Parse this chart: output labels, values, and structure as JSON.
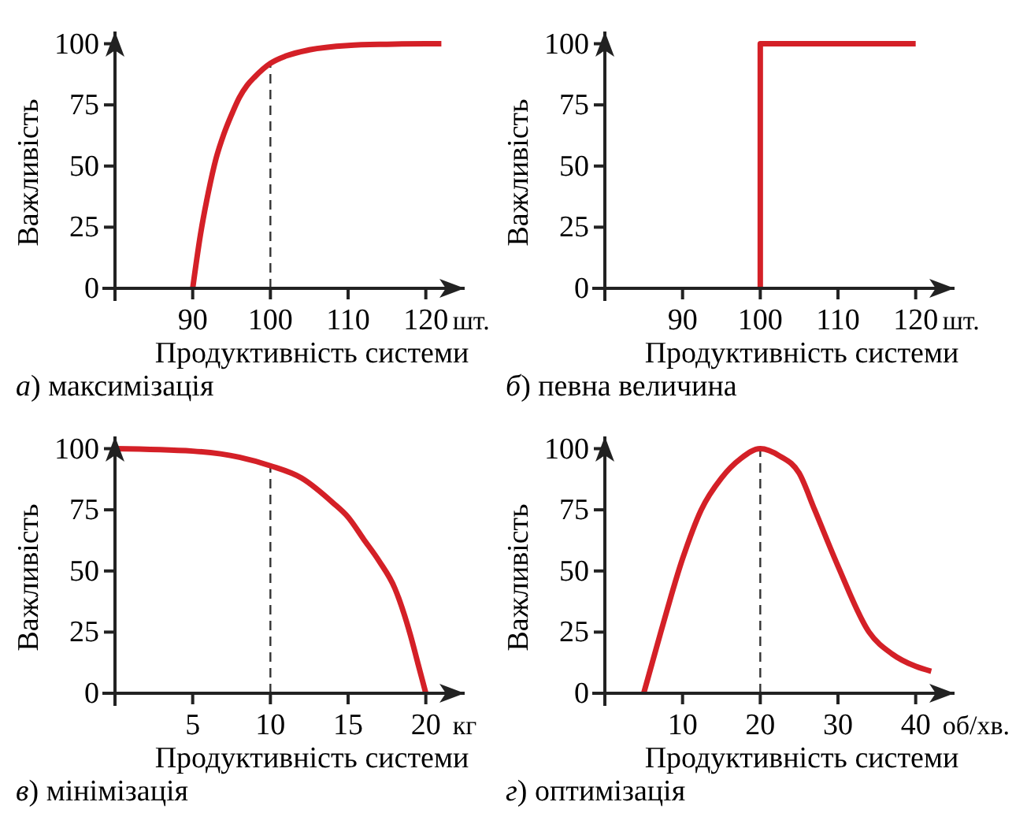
{
  "chart_data": [
    {
      "type": "line",
      "title": "а) максимізація",
      "xlabel": "Продуктивність системи",
      "ylabel": "Важливість",
      "annotations": [
        "шт."
      ],
      "xlim": [
        80,
        125
      ],
      "ylim": [
        0,
        105
      ],
      "xticks": [
        90,
        100,
        110,
        120
      ],
      "yticks": [
        0,
        25,
        50,
        75,
        100
      ],
      "grid": false,
      "marker": "none",
      "line_style": "solid",
      "ref_lines": [
        {
          "axis": "x",
          "value": 100,
          "line_style": "dashed",
          "color": "#333333"
        }
      ],
      "series": [
        {
          "color": "#d42027",
          "x": [
            90,
            91,
            92,
            93,
            94,
            95,
            96,
            97,
            98,
            100,
            102,
            105,
            110,
            115,
            120,
            122
          ],
          "values": [
            0,
            22,
            39,
            53,
            63,
            71,
            78,
            83,
            86.5,
            92,
            95,
            97.5,
            99.3,
            99.8,
            100,
            100
          ]
        }
      ]
    },
    {
      "type": "line",
      "title": "б) певна величина",
      "xlabel": "Продуктивність системи",
      "ylabel": "Важливість",
      "annotations": [
        "шт."
      ],
      "xlim": [
        80,
        125
      ],
      "ylim": [
        0,
        105
      ],
      "xticks": [
        90,
        100,
        110,
        120
      ],
      "yticks": [
        0,
        25,
        50,
        75,
        100
      ],
      "grid": false,
      "marker": "none",
      "line_style": "solid",
      "series": [
        {
          "color": "#d42027",
          "x": [
            100,
            100,
            120
          ],
          "values": [
            0,
            100,
            100
          ]
        }
      ]
    },
    {
      "type": "line",
      "title": "в) мінімізація",
      "xlabel": "Продуктивність системи",
      "ylabel": "Важливість",
      "annotations": [
        "кг"
      ],
      "xlim": [
        0,
        22.5
      ],
      "ylim": [
        0,
        105
      ],
      "xticks": [
        5,
        10,
        15,
        20
      ],
      "yticks": [
        0,
        25,
        50,
        75,
        100
      ],
      "grid": false,
      "marker": "none",
      "line_style": "solid",
      "ref_lines": [
        {
          "axis": "x",
          "value": 10,
          "line_style": "dashed",
          "color": "#333333"
        }
      ],
      "series": [
        {
          "color": "#d42027",
          "x": [
            0,
            5,
            8,
            10,
            12,
            14,
            15,
            16,
            17,
            18,
            19,
            19.5,
            20
          ],
          "values": [
            100,
            99,
            96.5,
            93,
            88,
            78,
            72,
            63,
            54,
            43,
            24,
            12,
            0
          ]
        }
      ]
    },
    {
      "type": "line",
      "title": "г) оптимізація",
      "xlabel": "Продуктивність системи",
      "ylabel": "Важливість",
      "annotations": [
        "об/хв."
      ],
      "xlim": [
        0,
        45
      ],
      "ylim": [
        0,
        105
      ],
      "xticks": [
        10,
        20,
        30,
        40
      ],
      "yticks": [
        0,
        25,
        50,
        75,
        100
      ],
      "grid": false,
      "marker": "none",
      "line_style": "solid",
      "ref_lines": [
        {
          "axis": "x",
          "value": 20,
          "line_style": "dashed",
          "color": "#333333"
        }
      ],
      "series": [
        {
          "color": "#d42027",
          "x": [
            5,
            7.2,
            10,
            12.4,
            15,
            17.5,
            20,
            22.5,
            25,
            27,
            30,
            34,
            37,
            40,
            42
          ],
          "values": [
            0,
            25,
            55,
            75,
            88,
            96,
            100,
            97,
            90,
            75,
            52,
            25,
            16,
            11,
            9
          ]
        }
      ]
    }
  ]
}
